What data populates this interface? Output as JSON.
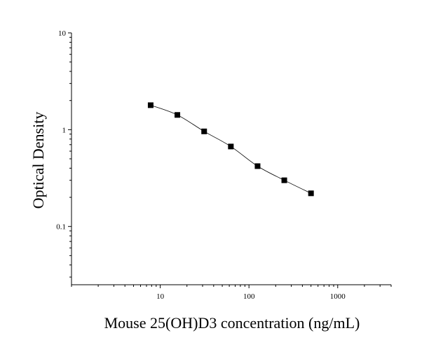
{
  "chart_data": {
    "type": "scatter",
    "title": "",
    "xlabel": "Mouse 25(OH)D3 concentration (ng/mL)",
    "ylabel": "Optical Density",
    "x_scale": "log",
    "y_scale": "log",
    "xlim": [
      1,
      4000
    ],
    "ylim": [
      0.025,
      10
    ],
    "x_ticks": [
      {
        "value": 10,
        "label": "10"
      },
      {
        "value": 100,
        "label": "100"
      },
      {
        "value": 1000,
        "label": "1000"
      }
    ],
    "y_ticks": [
      {
        "value": 0.1,
        "label": "0.1"
      },
      {
        "value": 1,
        "label": "1"
      },
      {
        "value": 10,
        "label": "10"
      }
    ],
    "grid": false,
    "legend": "none",
    "series": [
      {
        "x": [
          7.8,
          15.6,
          31.25,
          62.5,
          125,
          250,
          500
        ],
        "y": [
          1.79,
          1.42,
          0.96,
          0.67,
          0.42,
          0.3,
          0.22
        ],
        "marker": "square",
        "fitted_curve": true
      }
    ],
    "colors": {
      "marker": "#000000",
      "line": "#000000",
      "axis": "#000000"
    }
  }
}
